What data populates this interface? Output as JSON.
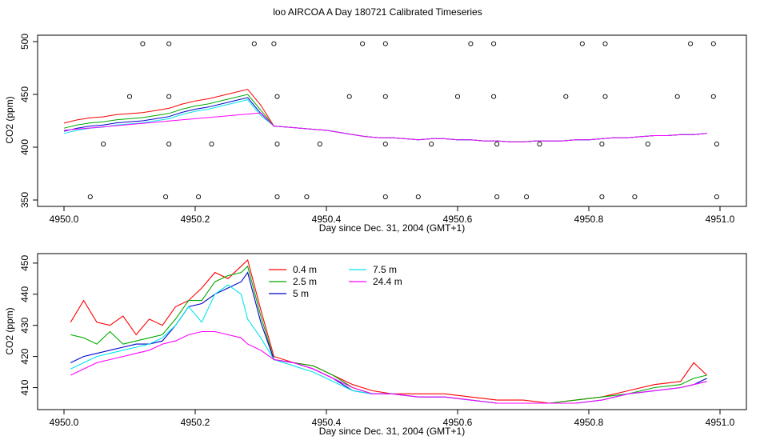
{
  "title": "loo AIRCOA A  Day 180721  Calibrated Timeseries",
  "chart_data": [
    {
      "type": "scatter",
      "xlabel": "Day since Dec. 31, 2004 (GMT+1)",
      "ylabel": "CO2 (ppm)",
      "xlim": [
        4950.0,
        4951.0
      ],
      "ylim": [
        350,
        500
      ],
      "xticks": [
        "4950.0",
        "4950.2",
        "4950.4",
        "4950.6",
        "4950.8",
        "4951.0"
      ],
      "yticks": [
        "350",
        "400",
        "450",
        "500"
      ],
      "series": [
        {
          "values": [
            [
              4950.0,
              415
            ],
            [
              4950.02,
              418
            ],
            [
              4950.04,
              420
            ],
            [
              4950.06,
              421
            ],
            [
              4950.08,
              423
            ],
            [
              4950.1,
              424
            ],
            [
              4950.12,
              425
            ],
            [
              4950.14,
              427
            ],
            [
              4950.16,
              429
            ],
            [
              4950.18,
              433
            ],
            [
              4950.2,
              436
            ],
            [
              4950.22,
              438
            ],
            [
              4950.24,
              441
            ],
            [
              4950.26,
              444
            ],
            [
              4950.28,
              447
            ],
            [
              4950.3,
              432
            ],
            [
              4950.32,
              420
            ],
            [
              4950.34,
              419
            ],
            [
              4950.36,
              418
            ],
            [
              4950.38,
              417
            ],
            [
              4950.4,
              416
            ],
            [
              4950.42,
              414
            ],
            [
              4950.44,
              412
            ],
            [
              4950.46,
              410
            ],
            [
              4950.48,
              409
            ],
            [
              4950.5,
              409
            ],
            [
              4950.52,
              408
            ],
            [
              4950.54,
              407
            ],
            [
              4950.56,
              408
            ],
            [
              4950.58,
              408
            ],
            [
              4950.6,
              407
            ],
            [
              4950.62,
              407
            ],
            [
              4950.64,
              406
            ],
            [
              4950.66,
              406
            ],
            [
              4950.68,
              405
            ],
            [
              4950.7,
              405
            ],
            [
              4950.72,
              406
            ],
            [
              4950.74,
              406
            ],
            [
              4950.76,
              406
            ],
            [
              4950.78,
              407
            ],
            [
              4950.8,
              407
            ],
            [
              4950.82,
              408
            ],
            [
              4950.84,
              409
            ],
            [
              4950.86,
              409
            ],
            [
              4950.88,
              410
            ],
            [
              4950.9,
              411
            ],
            [
              4950.92,
              411
            ],
            [
              4950.94,
              412
            ],
            [
              4950.96,
              412
            ],
            [
              4950.98,
              413
            ]
          ]
        }
      ],
      "marker_points": [
        [
          4950.04,
          353
        ],
        [
          4950.06,
          403
        ],
        [
          4950.1,
          448
        ],
        [
          4950.12,
          498
        ],
        [
          4950.155,
          353
        ],
        [
          4950.16,
          403
        ],
        [
          4950.16,
          448
        ],
        [
          4950.16,
          498
        ],
        [
          4950.205,
          353
        ],
        [
          4950.225,
          403
        ],
        [
          4950.29,
          498
        ],
        [
          4950.32,
          498
        ],
        [
          4950.325,
          448
        ],
        [
          4950.325,
          403
        ],
        [
          4950.325,
          353
        ],
        [
          4950.37,
          353
        ],
        [
          4950.39,
          403
        ],
        [
          4950.435,
          448
        ],
        [
          4950.455,
          498
        ],
        [
          4950.49,
          353
        ],
        [
          4950.49,
          403
        ],
        [
          4950.49,
          448
        ],
        [
          4950.49,
          498
        ],
        [
          4950.54,
          353
        ],
        [
          4950.56,
          403
        ],
        [
          4950.6,
          448
        ],
        [
          4950.62,
          498
        ],
        [
          4950.655,
          498
        ],
        [
          4950.655,
          448
        ],
        [
          4950.66,
          403
        ],
        [
          4950.66,
          353
        ],
        [
          4950.705,
          353
        ],
        [
          4950.725,
          403
        ],
        [
          4950.765,
          448
        ],
        [
          4950.79,
          498
        ],
        [
          4950.82,
          353
        ],
        [
          4950.82,
          403
        ],
        [
          4950.825,
          448
        ],
        [
          4950.825,
          498
        ],
        [
          4950.87,
          353
        ],
        [
          4950.89,
          403
        ],
        [
          4950.935,
          448
        ],
        [
          4950.955,
          498
        ],
        [
          4950.99,
          498
        ],
        [
          4950.99,
          448
        ],
        [
          4950.995,
          403
        ],
        [
          4950.995,
          353
        ]
      ]
    },
    {
      "type": "line",
      "xlabel": "Day since Dec. 31, 2004 (GMT+1)",
      "ylabel": "CO2 (ppm)",
      "xlim": [
        4950.0,
        4951.0
      ],
      "ylim": [
        405,
        451
      ],
      "xticks": [
        "4950.0",
        "4950.2",
        "4950.4",
        "4950.6",
        "4950.8",
        "4951.0"
      ],
      "yticks": [
        "410",
        "420",
        "430",
        "440",
        "450"
      ],
      "legend": "top-left",
      "x": [
        4950.01,
        4950.03,
        4950.05,
        4950.07,
        4950.09,
        4950.11,
        4950.13,
        4950.15,
        4950.17,
        4950.19,
        4950.21,
        4950.23,
        4950.25,
        4950.27,
        4950.28,
        4950.3,
        4950.32,
        4950.35,
        4950.38,
        4950.41,
        4950.44,
        4950.47,
        4950.5,
        4950.54,
        4950.58,
        4950.62,
        4950.66,
        4950.7,
        4950.74,
        4950.78,
        4950.82,
        4950.86,
        4950.9,
        4950.94,
        4950.96,
        4950.98
      ],
      "series": [
        {
          "name": "0.4 m",
          "color": "#ff0000",
          "values": [
            431,
            438,
            431,
            430,
            433,
            427,
            432,
            430,
            436,
            438,
            442,
            447,
            445,
            449,
            451,
            435,
            420,
            418,
            417,
            414,
            411,
            409,
            408,
            408,
            408,
            407,
            406,
            406,
            405,
            406,
            407,
            409,
            411,
            412,
            418,
            414
          ]
        },
        {
          "name": "2.5 m",
          "color": "#00aa00",
          "values": [
            427,
            426,
            424,
            428,
            424,
            425,
            426,
            427,
            432,
            438,
            438,
            444,
            446,
            447,
            449,
            433,
            419,
            418,
            417,
            414,
            410,
            408,
            408,
            407,
            407,
            406,
            405,
            405,
            405,
            406,
            407,
            408,
            410,
            411,
            413,
            414
          ]
        },
        {
          "name": "5 m",
          "color": "#0000cc",
          "values": [
            418,
            420,
            421,
            422,
            423,
            424,
            424,
            425,
            430,
            436,
            437,
            440,
            442,
            444,
            447,
            431,
            419,
            418,
            416,
            413,
            409,
            408,
            408,
            407,
            407,
            406,
            405,
            405,
            405,
            405,
            406,
            408,
            409,
            410,
            411,
            413
          ]
        },
        {
          "name": "7.5 m",
          "color": "#00e5ee",
          "values": [
            416,
            418,
            420,
            421,
            422,
            423,
            424,
            426,
            430,
            436,
            431,
            440,
            443,
            440,
            432,
            426,
            419,
            417,
            415,
            412,
            409,
            408,
            408,
            407,
            407,
            406,
            405,
            405,
            405,
            405,
            406,
            408,
            409,
            410,
            411,
            412
          ]
        },
        {
          "name": "24.4 m",
          "color": "#ff00ff",
          "values": [
            414,
            416,
            418,
            419,
            420,
            421,
            422,
            424,
            425,
            427,
            428,
            428,
            427,
            426,
            424,
            422,
            419,
            418,
            416,
            413,
            410,
            408,
            408,
            407,
            407,
            406,
            405,
            405,
            405,
            405,
            406,
            408,
            409,
            410,
            411,
            412
          ]
        }
      ]
    }
  ]
}
